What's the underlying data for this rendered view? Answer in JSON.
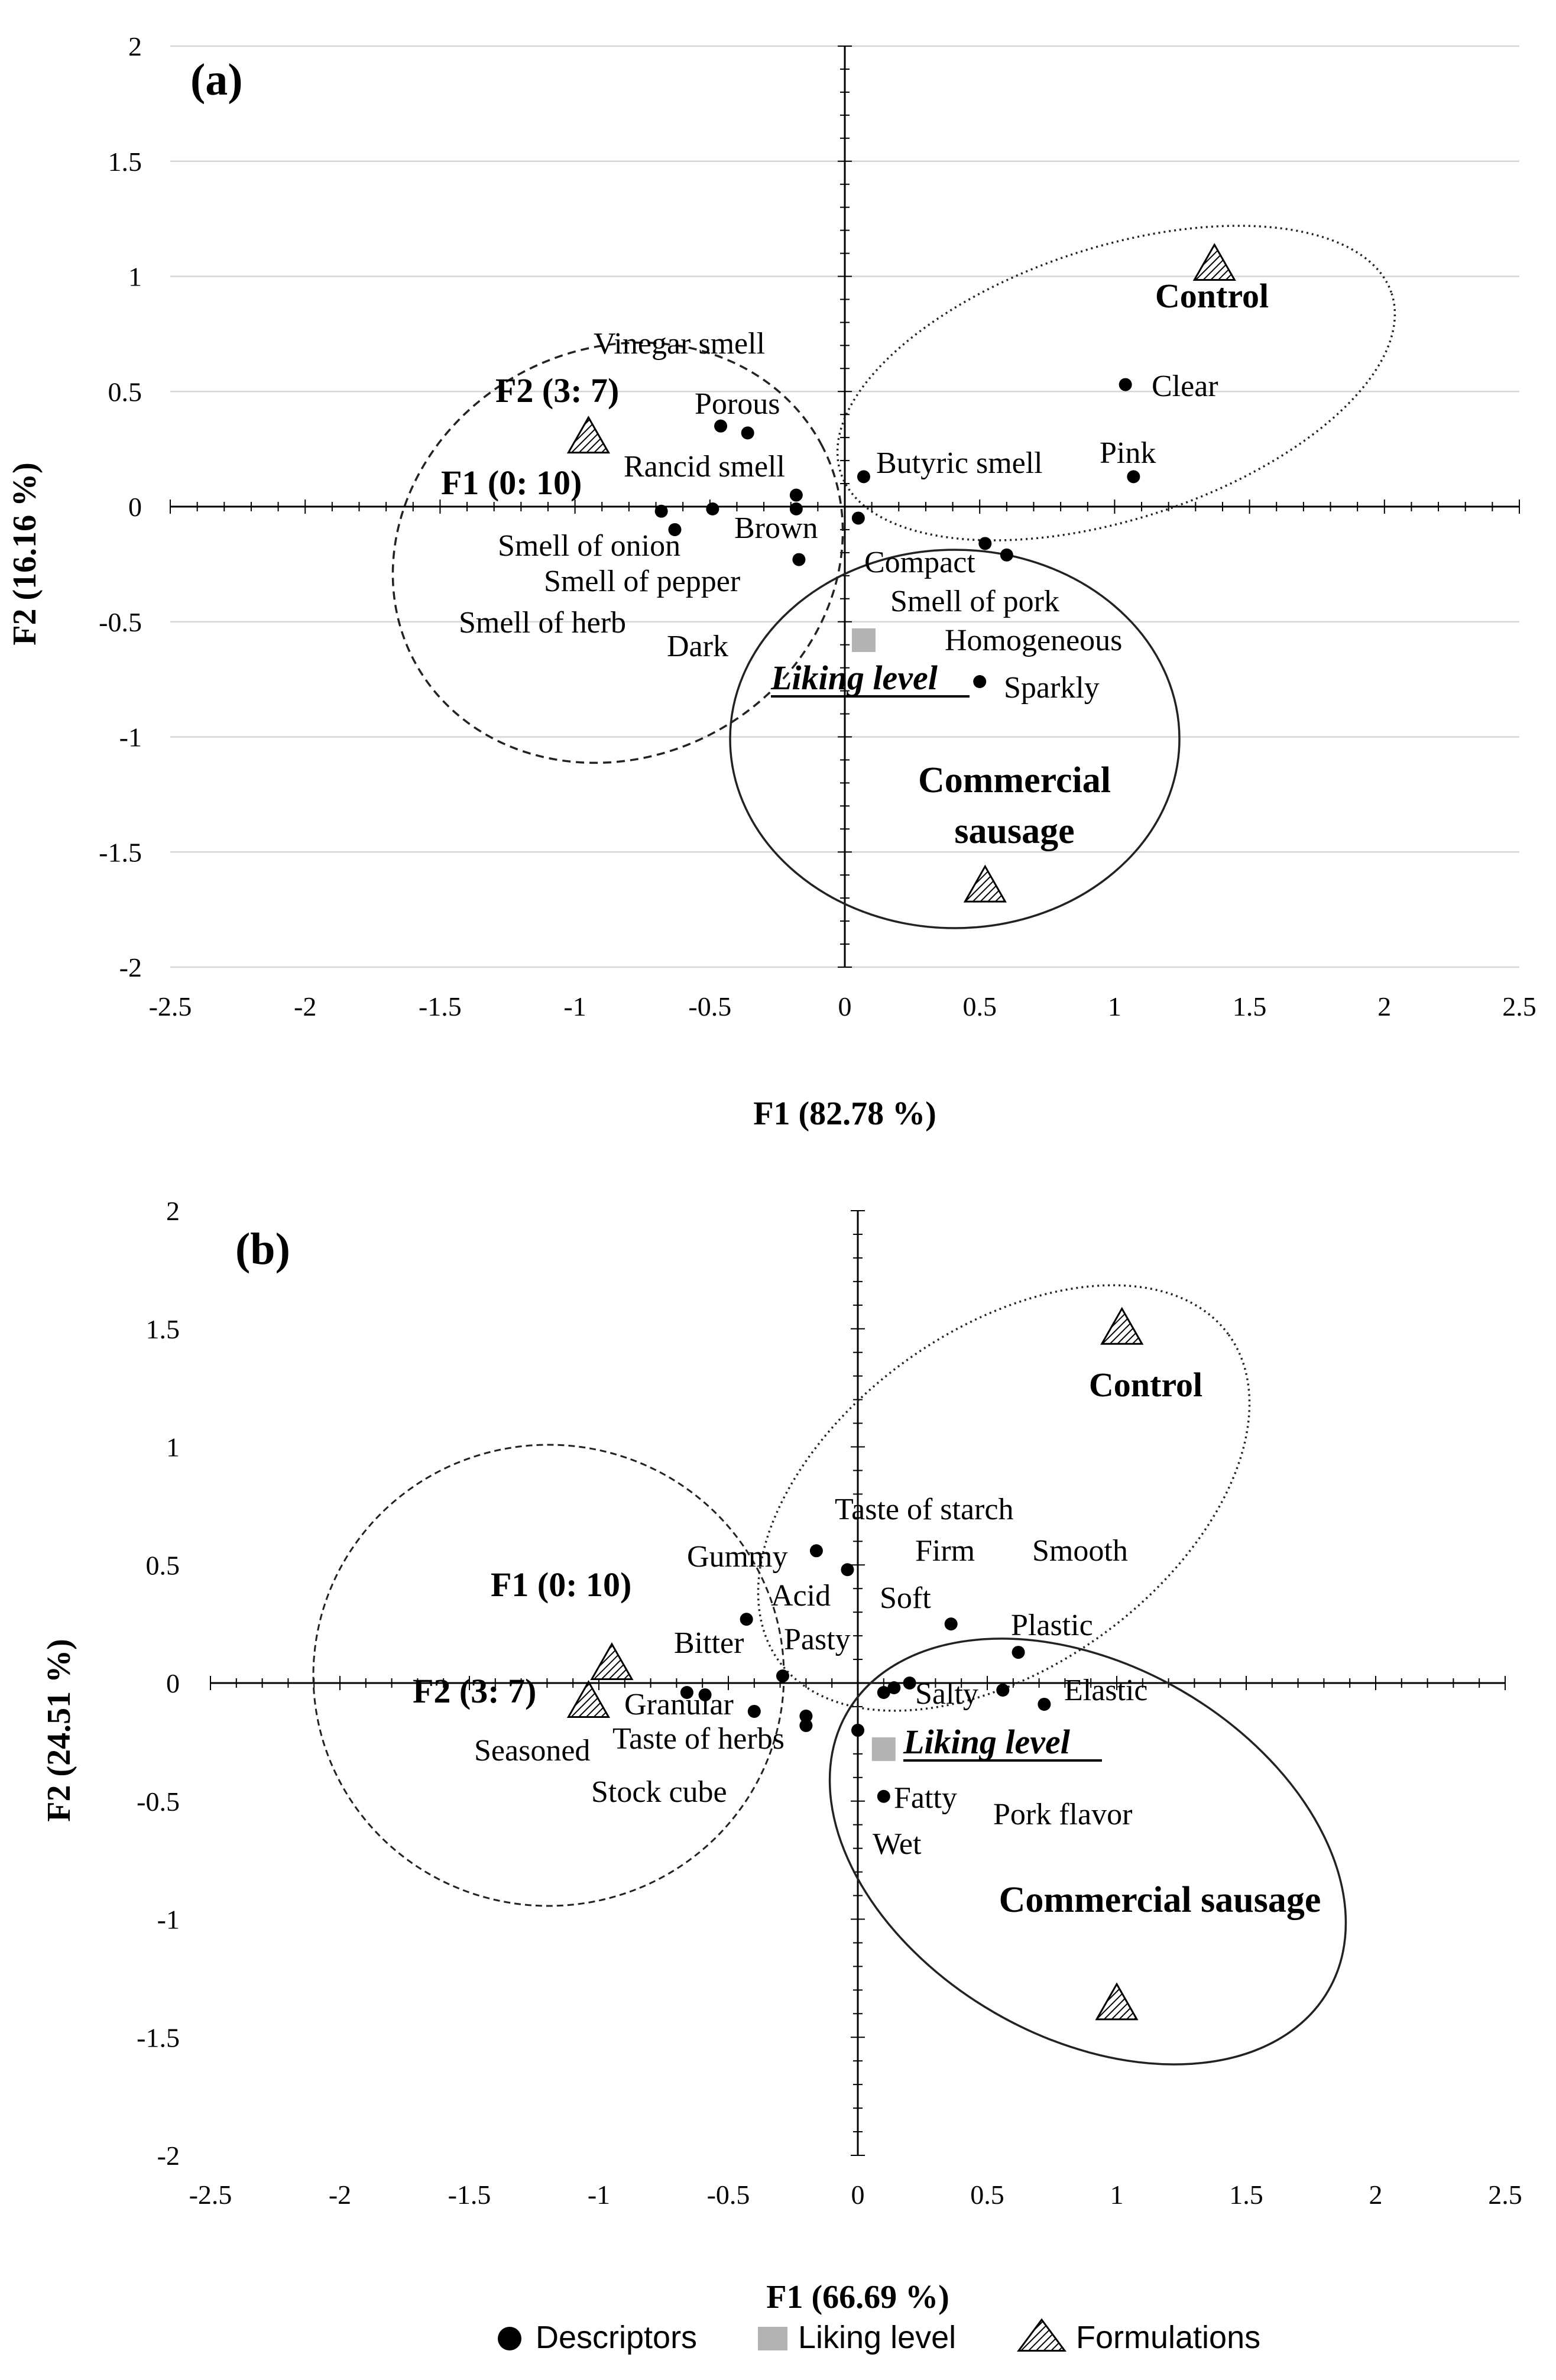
{
  "chart_data": [
    {
      "type": "scatter",
      "panel_label": "(a)",
      "xlabel": "F1 (82.78 %)",
      "ylabel": "F2 (16.16 %)",
      "xlim": [
        -2.5,
        2.5
      ],
      "ylim": [
        -2,
        2
      ],
      "xticks": [
        "-2.5",
        "-2",
        "-1.5",
        "-1",
        "-0.5",
        "0",
        "0.5",
        "1",
        "1.5",
        "2",
        "2.5"
      ],
      "yticks": [
        "-2",
        "-1.5",
        "-1",
        "-0.5",
        "0",
        "0.5",
        "1",
        "1.5",
        "2"
      ],
      "grid": "horizontal",
      "descriptors": [
        {
          "label": "Vinegar smell",
          "x": -0.46,
          "y": 0.35
        },
        {
          "label": "Porous",
          "x": -0.36,
          "y": 0.32
        },
        {
          "label": "Rancid smell",
          "x": -0.18,
          "y": 0.05
        },
        {
          "label": "Butyric smell",
          "x": 0.07,
          "y": 0.13
        },
        {
          "label": "Clear",
          "x": 1.04,
          "y": 0.53
        },
        {
          "label": "Pink",
          "x": 1.07,
          "y": 0.13
        },
        {
          "label": "Smell of onion",
          "x": -0.68,
          "y": -0.02
        },
        {
          "label": "Smell of pepper",
          "x": -0.63,
          "y": -0.1
        },
        {
          "label": "Smell of herb",
          "x": -0.49,
          "y": -0.01
        },
        {
          "label": "Brown",
          "x": -0.18,
          "y": -0.01
        },
        {
          "label": "Dark",
          "x": -0.17,
          "y": -0.23
        },
        {
          "label": "Compact",
          "x": 0.05,
          "y": -0.05
        },
        {
          "label": "Smell of pork",
          "x": 0.52,
          "y": -0.16
        },
        {
          "label": "Homogeneous",
          "x": 0.6,
          "y": -0.21
        },
        {
          "label": "Sparkly",
          "x": 0.5,
          "y": -0.76
        }
      ],
      "liking_level": {
        "label": "Liking level",
        "x": 0.07,
        "y": -0.58
      },
      "formulations": [
        {
          "label": "F2 (3: 7)",
          "x": -0.95,
          "y": 0.3
        },
        {
          "label": "F1 (0: 10)",
          "x": -0.95,
          "y": 0.3
        },
        {
          "label": "Control",
          "x": 1.37,
          "y": 1.05
        },
        {
          "label": "Commercial sausage",
          "x": 0.52,
          "y": -1.65
        }
      ],
      "legend_position": "bottom"
    },
    {
      "type": "scatter",
      "panel_label": "(b)",
      "xlabel": "F1 (66.69 %)",
      "ylabel": "F2 (24.51 %)",
      "xlim": [
        -2.5,
        2.5
      ],
      "ylim": [
        -2,
        2
      ],
      "xticks": [
        "-2.5",
        "-2",
        "-1.5",
        "-1",
        "-0.5",
        "0",
        "0.5",
        "1",
        "1.5",
        "2",
        "2.5"
      ],
      "yticks": [
        "-2",
        "-1.5",
        "-1",
        "-0.5",
        "0",
        "0.5",
        "1",
        "1.5",
        "2"
      ],
      "grid": "none",
      "descriptors": [
        {
          "label": "Taste of starch",
          "x": -0.16,
          "y": 0.56
        },
        {
          "label": "Gummy",
          "x": -0.04,
          "y": 0.48
        },
        {
          "label": "Firm",
          "x": 0.36,
          "y": 0.25
        },
        {
          "label": "Smooth",
          "x": 0.62,
          "y": 0.13
        },
        {
          "label": "Acid",
          "x": -0.43,
          "y": 0.27
        },
        {
          "label": "Soft",
          "x": 0.2,
          "y": 0.0
        },
        {
          "label": "Bitter",
          "x": -0.29,
          "y": 0.03
        },
        {
          "label": "Pasty",
          "x": -0.2,
          "y": -0.14
        },
        {
          "label": "Plastic",
          "x": 0.56,
          "y": -0.03
        },
        {
          "label": "Granular",
          "x": -0.66,
          "y": -0.04
        },
        {
          "label": "Salty",
          "x": 0.14,
          "y": -0.02
        },
        {
          "label": "Elastic",
          "x": 0.72,
          "y": -0.09
        },
        {
          "label": "Seasoned",
          "x": -0.59,
          "y": -0.05
        },
        {
          "label": "Taste of herbs",
          "x": -0.4,
          "y": -0.12
        },
        {
          "label": "Stock cube",
          "x": -0.2,
          "y": -0.18
        },
        {
          "label": "Fatty",
          "x": 0.1,
          "y": -0.48
        },
        {
          "label": "Wet",
          "x": 0.0,
          "y": -0.2
        },
        {
          "label": "Pork flavor",
          "x": 0.1,
          "y": -0.04
        }
      ],
      "liking_level": {
        "label": "Liking level",
        "x": 0.1,
        "y": -0.28
      },
      "formulations": [
        {
          "label": "F1 (0: 10)",
          "x": -0.95,
          "y": 0.08
        },
        {
          "label": "F2 (3: 7)",
          "x": -1.04,
          "y": -0.08
        },
        {
          "label": "Control",
          "x": 1.02,
          "y": 1.5
        },
        {
          "label": "Commercial sausage",
          "x": 1.0,
          "y": -1.36
        }
      ],
      "legend_position": "bottom"
    }
  ],
  "legend": {
    "descriptors": "Descriptors",
    "liking": "Liking level",
    "formulations": "Formulations"
  }
}
